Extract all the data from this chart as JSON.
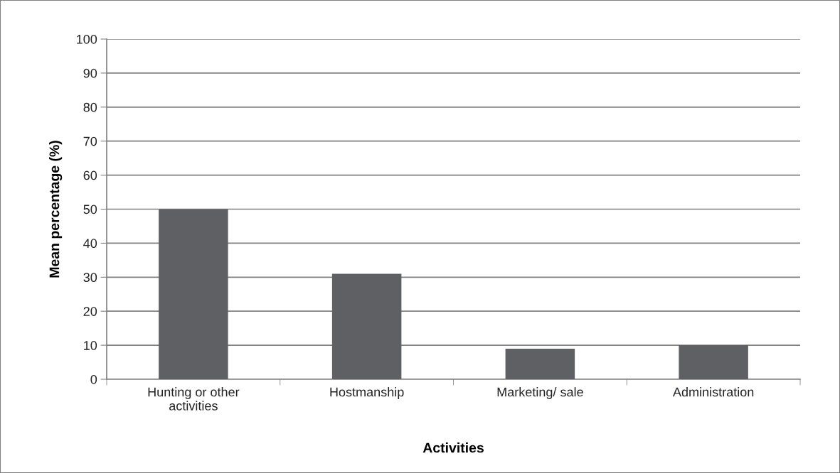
{
  "chart_data": {
    "type": "bar",
    "xlabel": "Activities",
    "ylabel": "Mean percentage (%)",
    "categories": [
      "Hunting or other\nactivities",
      "Hostmanship",
      "Marketing/ sale",
      "Administration"
    ],
    "values": [
      50,
      31,
      9,
      10
    ],
    "color": "#5f6064",
    "ylim": [
      0,
      100
    ],
    "yticks": [
      0,
      10,
      20,
      30,
      40,
      50,
      60,
      70,
      80,
      90,
      100
    ],
    "grid": "y",
    "legend": false
  }
}
